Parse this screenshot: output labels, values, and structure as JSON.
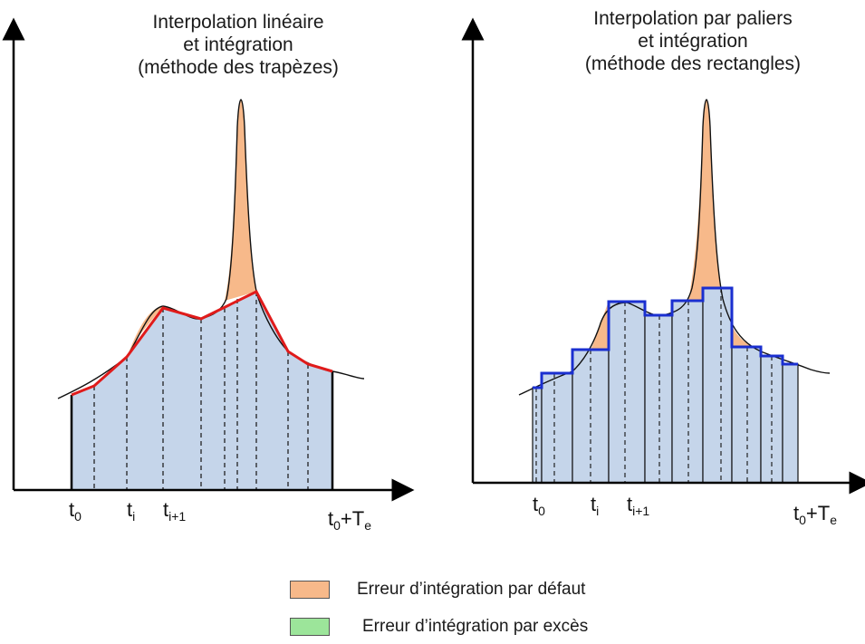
{
  "left_panel": {
    "title": [
      "Interpolation linéaire",
      "et intégration",
      "(méthode des trapèzes)"
    ],
    "ticks": {
      "t0_base": "t",
      "t0_sub": "0",
      "ti_base": "t",
      "ti_sub": "i",
      "ti1_base": "t",
      "ti1_sub": "i+1",
      "end_base": "t",
      "end_sub": "0",
      "end_mid": "+T",
      "end_sub2": "e"
    }
  },
  "right_panel": {
    "title": [
      "Interpolation par paliers",
      "et intégration",
      "(méthode des rectangles)"
    ],
    "ticks": {
      "t0_base": "t",
      "t0_sub": "0",
      "ti_base": "t",
      "ti_sub": "i",
      "ti1_base": "t",
      "ti1_sub": "i+1",
      "end_base": "t",
      "end_sub": "0",
      "end_mid": "+T",
      "end_sub2": "e"
    }
  },
  "legend": {
    "default_error": "Erreur d’intégration par défaut",
    "excess_error": "Erreur d’intégration par excès"
  },
  "colors": {
    "area_fill": "#c5d5ea",
    "default_error": "#f7b98a",
    "excess_error": "#9ce59a",
    "trapezoid_line": "#e01b1b",
    "rectangle_line": "#1a2fd0",
    "curve": "#111111"
  }
}
